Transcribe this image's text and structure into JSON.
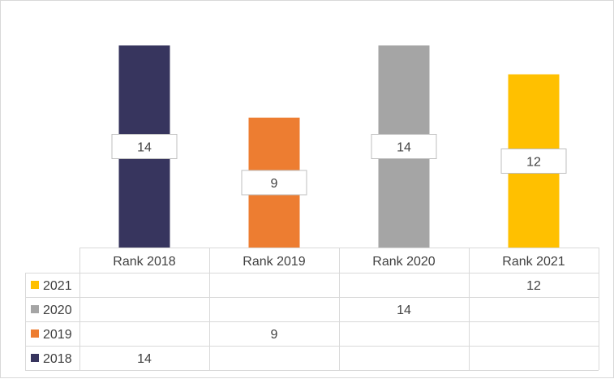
{
  "chart_data": {
    "type": "bar",
    "categories": [
      "Rank 2018",
      "Rank 2019",
      "Rank 2020",
      "Rank 2021"
    ],
    "series": [
      {
        "name": "2018",
        "color": "#37355e",
        "values": [
          14,
          null,
          null,
          null
        ]
      },
      {
        "name": "2019",
        "color": "#ed7d31",
        "values": [
          null,
          9,
          null,
          null
        ]
      },
      {
        "name": "2020",
        "color": "#a5a5a5",
        "values": [
          null,
          null,
          14,
          null
        ]
      },
      {
        "name": "2021",
        "color": "#ffc000",
        "values": [
          null,
          null,
          null,
          12
        ]
      }
    ],
    "title": "",
    "xlabel": "",
    "ylabel": "",
    "ylim": [
      0,
      14
    ],
    "grid": false,
    "legend": "data-table-left",
    "data_labels": true,
    "data_table": true,
    "table_row_order": [
      "2021",
      "2020",
      "2019",
      "2018"
    ]
  }
}
